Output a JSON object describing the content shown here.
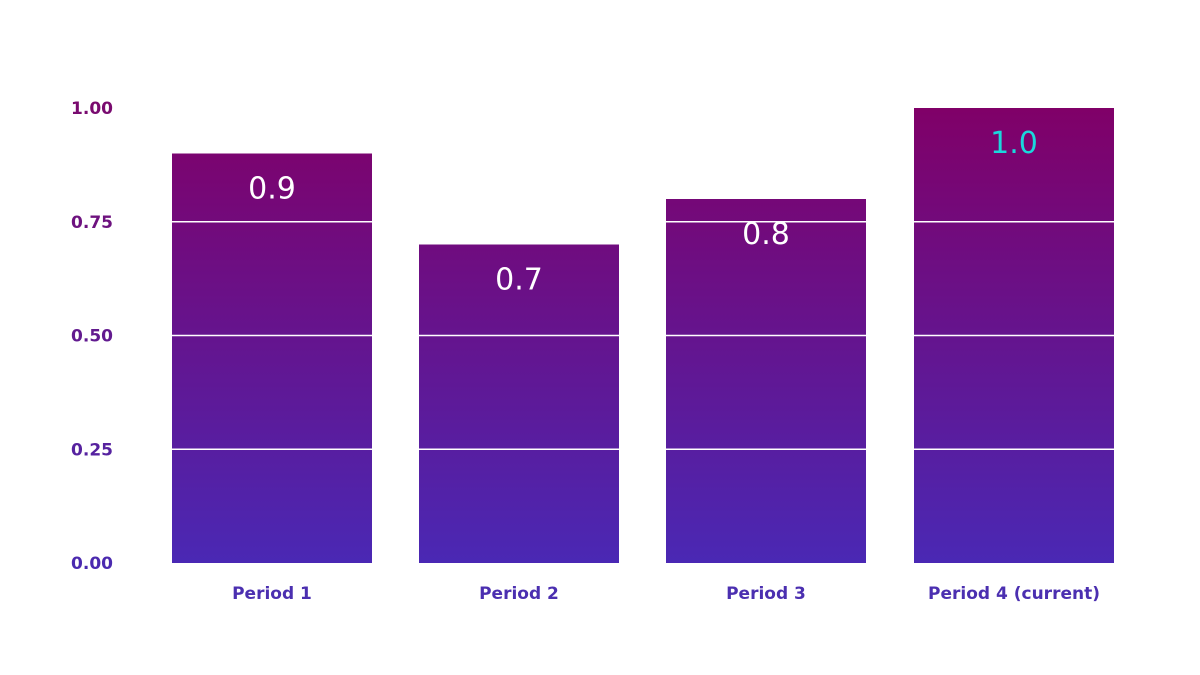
{
  "chart_data": {
    "type": "bar",
    "title": "",
    "xlabel": "",
    "ylabel": "",
    "categories": [
      "Period 1",
      "Period 2",
      "Period 3",
      "Period 4 (current)"
    ],
    "values": [
      0.9,
      0.7,
      0.8,
      1.0
    ],
    "value_labels": [
      "0.9",
      "0.7",
      "0.8",
      "1.0"
    ],
    "highlight_index": 3,
    "ylim": [
      0,
      1
    ],
    "yticks": [
      0,
      0.25,
      0.5,
      0.75,
      1.0
    ],
    "ytick_labels": [
      "0.00",
      "0.25",
      "0.50",
      "0.75",
      "1.00"
    ],
    "grid": true,
    "colors": {
      "bar_top": "#800068",
      "bar_bottom": "#4a28b4",
      "value_label": "#ffffff",
      "highlight_label": "#1ad8dc",
      "tick_top": "#7a0a6e",
      "tick_bottom": "#4a2ab0",
      "gridline": "#ffffff"
    }
  }
}
